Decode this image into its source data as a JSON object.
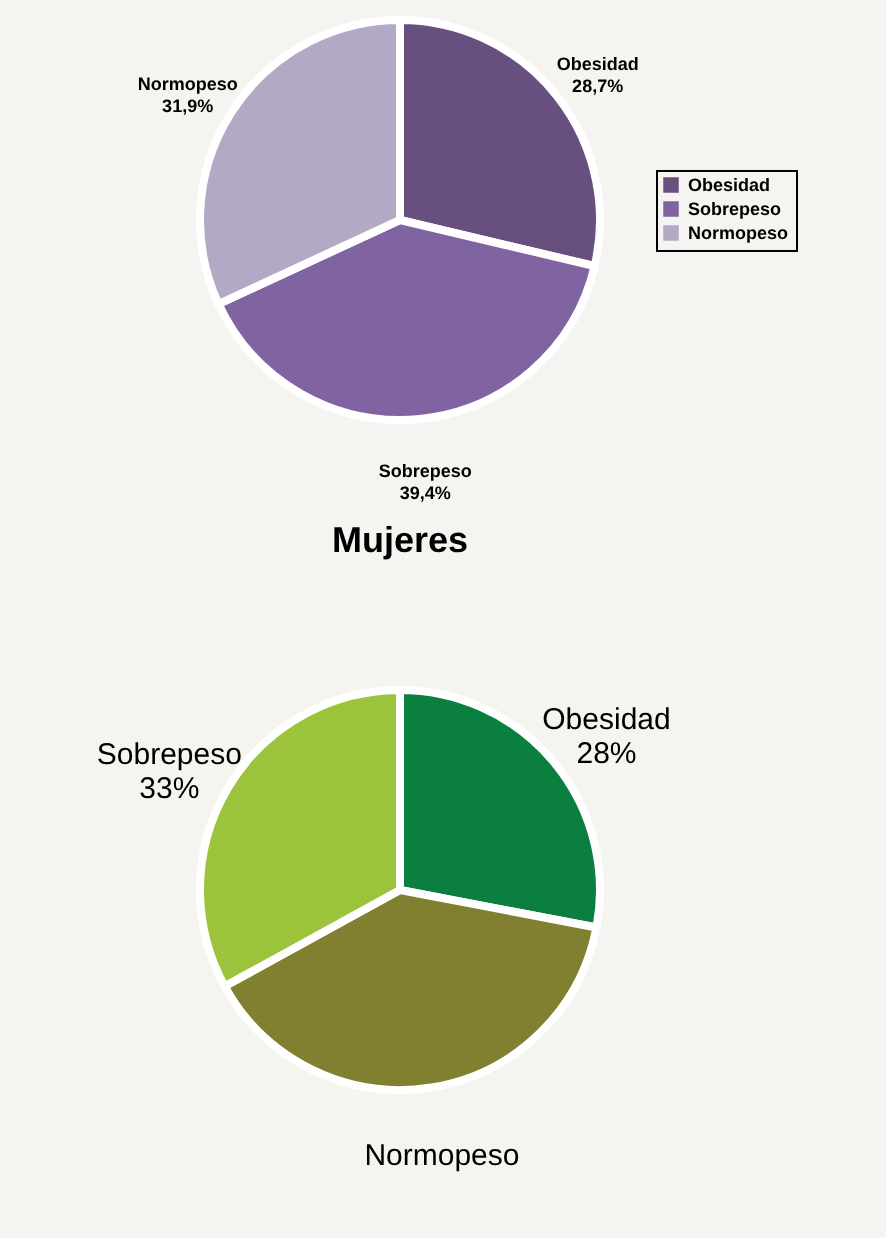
{
  "chart_data": [
    {
      "type": "pie",
      "categories": [
        "Obesidad",
        "Sobrepeso",
        "Normopeso"
      ],
      "values": [
        28.7,
        39.4,
        31.9
      ],
      "colors": [
        "#67507f",
        "#8064a2",
        "#b3a9c5"
      ],
      "value_labels": [
        "28,7%",
        "39,4%",
        "31,9%"
      ],
      "legend": "right"
    },
    {
      "type": "pie",
      "title": "Mujeres",
      "categories": [
        "Obesidad",
        "Normopeso",
        "Sobrepeso"
      ],
      "values": [
        28,
        39,
        33
      ],
      "colors": [
        "#0b7f3f",
        "#808030",
        "#9bc43c"
      ],
      "value_labels": [
        "28%",
        null,
        "33%"
      ]
    }
  ]
}
